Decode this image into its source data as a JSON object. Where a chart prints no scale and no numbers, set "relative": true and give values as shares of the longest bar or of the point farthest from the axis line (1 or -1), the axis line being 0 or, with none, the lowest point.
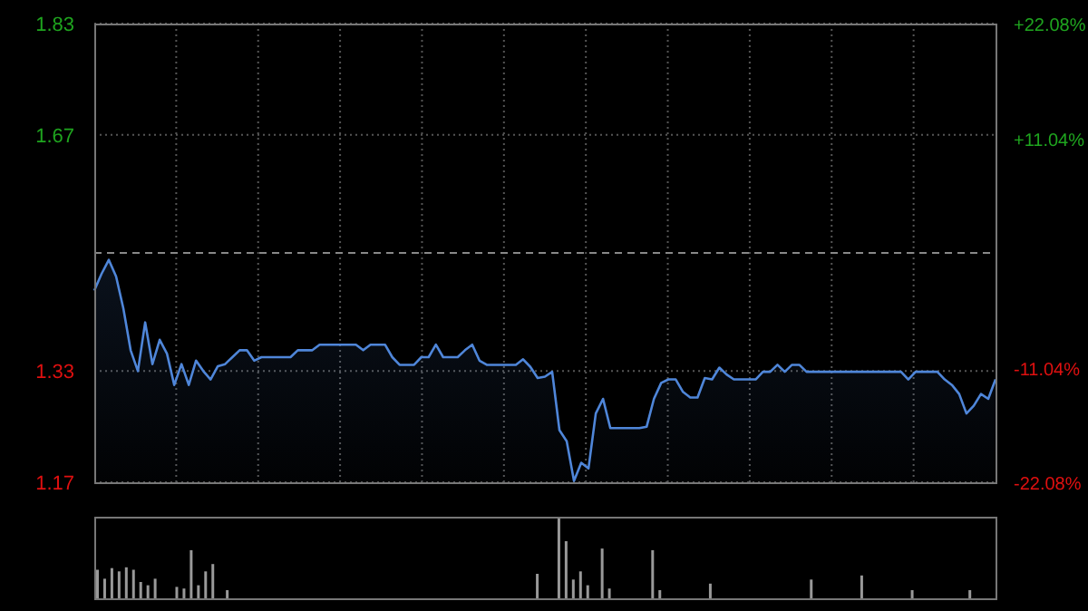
{
  "chart_data": [
    {
      "type": "area",
      "categories": [
        null,
        null,
        null,
        null,
        null,
        null,
        null,
        null,
        null,
        null,
        null,
        null,
        null,
        null,
        null,
        null,
        null,
        null,
        null,
        null,
        null,
        null,
        null,
        null,
        null,
        null,
        null,
        null,
        null,
        null,
        null,
        null,
        null,
        null,
        null,
        null,
        null,
        null,
        null,
        null,
        null,
        null,
        null,
        null,
        null,
        null,
        null,
        null,
        null,
        null,
        null,
        null,
        null,
        null,
        null,
        null,
        null,
        null,
        null,
        null,
        null,
        null,
        null,
        null,
        null,
        null,
        null,
        null,
        null,
        null,
        null,
        null,
        null,
        null,
        null,
        null,
        null,
        null,
        null,
        null,
        null,
        null,
        null,
        null,
        null,
        null,
        null,
        null,
        null,
        null,
        null,
        null,
        null,
        null,
        null,
        null,
        null,
        null,
        null,
        null,
        null,
        null,
        null,
        null,
        null,
        null,
        null,
        null,
        null,
        null,
        null,
        null,
        null,
        null,
        null,
        null,
        null,
        null,
        null,
        null,
        null,
        null,
        null,
        null,
        null
      ],
      "series": [
        {
          "color": "#4f86d9",
          "values": [
            1.446,
            1.47,
            1.49,
            1.466,
            1.42,
            1.36,
            1.33,
            1.4,
            1.34,
            1.375,
            1.355,
            1.31,
            1.34,
            1.31,
            1.345,
            1.33,
            1.318,
            1.337,
            1.34,
            1.35,
            1.36,
            1.36,
            1.345,
            1.35,
            1.35,
            1.35,
            1.35,
            1.35,
            1.36,
            1.36,
            1.36,
            1.368,
            1.368,
            1.368,
            1.368,
            1.368,
            1.368,
            1.36,
            1.368,
            1.368,
            1.368,
            1.35,
            1.339,
            1.339,
            1.339,
            1.35,
            1.35,
            1.368,
            1.35,
            1.35,
            1.35,
            1.36,
            1.368,
            1.345,
            1.339,
            1.339,
            1.339,
            1.339,
            1.339,
            1.347,
            1.336,
            1.32,
            1.322,
            1.329,
            1.245,
            1.229,
            1.172,
            1.198,
            1.19,
            1.269,
            1.29,
            1.248,
            1.248,
            1.248,
            1.248,
            1.248,
            1.25,
            1.29,
            1.313,
            1.318,
            1.318,
            1.3,
            1.292,
            1.292,
            1.32,
            1.318,
            1.335,
            1.325,
            1.318,
            1.318,
            1.318,
            1.318,
            1.329,
            1.329,
            1.339,
            1.329,
            1.339,
            1.339,
            1.329,
            1.329,
            1.329,
            1.329,
            1.329,
            1.329,
            1.329,
            1.329,
            1.329,
            1.329,
            1.329,
            1.329,
            1.329,
            1.329,
            1.318,
            1.329,
            1.329,
            1.329,
            1.329,
            1.318,
            1.31,
            1.297,
            1.269,
            1.28,
            1.297,
            1.29,
            1.318
          ]
        }
      ],
      "ylim": [
        1.17,
        1.83
      ],
      "yticks": [
        1.83,
        1.67,
        1.33,
        1.17
      ],
      "y2lim": [
        -22.08,
        22.08
      ],
      "y2ticks": [
        {
          "value": 22.08,
          "label": "+22.08%"
        },
        {
          "value": 11.04,
          "label": "+11.04%"
        },
        {
          "value": -11.04,
          "label": "-11.04%"
        },
        {
          "value": -22.08,
          "label": "-22.08%"
        }
      ],
      "ref_lines": [
        {
          "axis": "y",
          "value": 1.5,
          "color": "#888888",
          "line_style": "dashed"
        }
      ],
      "grid": true,
      "legend": false,
      "tick_labels": "y"
    },
    {
      "type": "bar",
      "relative": true,
      "categories": [
        null,
        null,
        null,
        null,
        null,
        null,
        null,
        null,
        null,
        null,
        null,
        null,
        null,
        null,
        null,
        null,
        null,
        null,
        null,
        null,
        null,
        null,
        null,
        null,
        null,
        null,
        null,
        null,
        null,
        null,
        null,
        null,
        null,
        null,
        null,
        null,
        null,
        null,
        null,
        null,
        null,
        null,
        null,
        null,
        null,
        null,
        null,
        null,
        null,
        null,
        null,
        null,
        null,
        null,
        null,
        null,
        null,
        null,
        null,
        null,
        null,
        null,
        null,
        null,
        null,
        null,
        null,
        null,
        null,
        null,
        null,
        null,
        null,
        null,
        null,
        null,
        null,
        null,
        null,
        null,
        null,
        null,
        null,
        null,
        null,
        null,
        null,
        null,
        null,
        null,
        null,
        null,
        null,
        null,
        null,
        null,
        null,
        null,
        null,
        null,
        null,
        null,
        null,
        null,
        null,
        null,
        null,
        null,
        null,
        null,
        null,
        null,
        null,
        null,
        null,
        null,
        null,
        null,
        null,
        null,
        null,
        null,
        null,
        null,
        null
      ],
      "series": [
        {
          "color": "#999999",
          "values": [
            0.35,
            0.24,
            0.37,
            0.33,
            0.38,
            0.35,
            0.2,
            0.16,
            0.24,
            0,
            0,
            0.14,
            0.12,
            0.59,
            0.16,
            0.33,
            0.42,
            0,
            0.1,
            0,
            0,
            0,
            0,
            0,
            0,
            0,
            0,
            0,
            0,
            0,
            0,
            0,
            0,
            0,
            0,
            0,
            0,
            0,
            0,
            0,
            0,
            0,
            0,
            0,
            0,
            0,
            0,
            0,
            0,
            0,
            0,
            0,
            0,
            0,
            0,
            0,
            0,
            0,
            0,
            0,
            0,
            0.3,
            0,
            0,
            1,
            0.7,
            0.23,
            0.33,
            0.16,
            0,
            0.61,
            0.12,
            0,
            0,
            0,
            0,
            0,
            0.59,
            0.1,
            0,
            0,
            0,
            0,
            0,
            0,
            0.18,
            0,
            0,
            0,
            0,
            0,
            0,
            0,
            0,
            0,
            0,
            0,
            0,
            0,
            0.23,
            0,
            0,
            0,
            0,
            0,
            0,
            0.28,
            0,
            0,
            0,
            0,
            0,
            0,
            0.1,
            0,
            0,
            0,
            0,
            0,
            0,
            0,
            0.1,
            0,
            0,
            0
          ]
        }
      ],
      "grid": false,
      "legend": false,
      "tick_labels": false
    }
  ]
}
